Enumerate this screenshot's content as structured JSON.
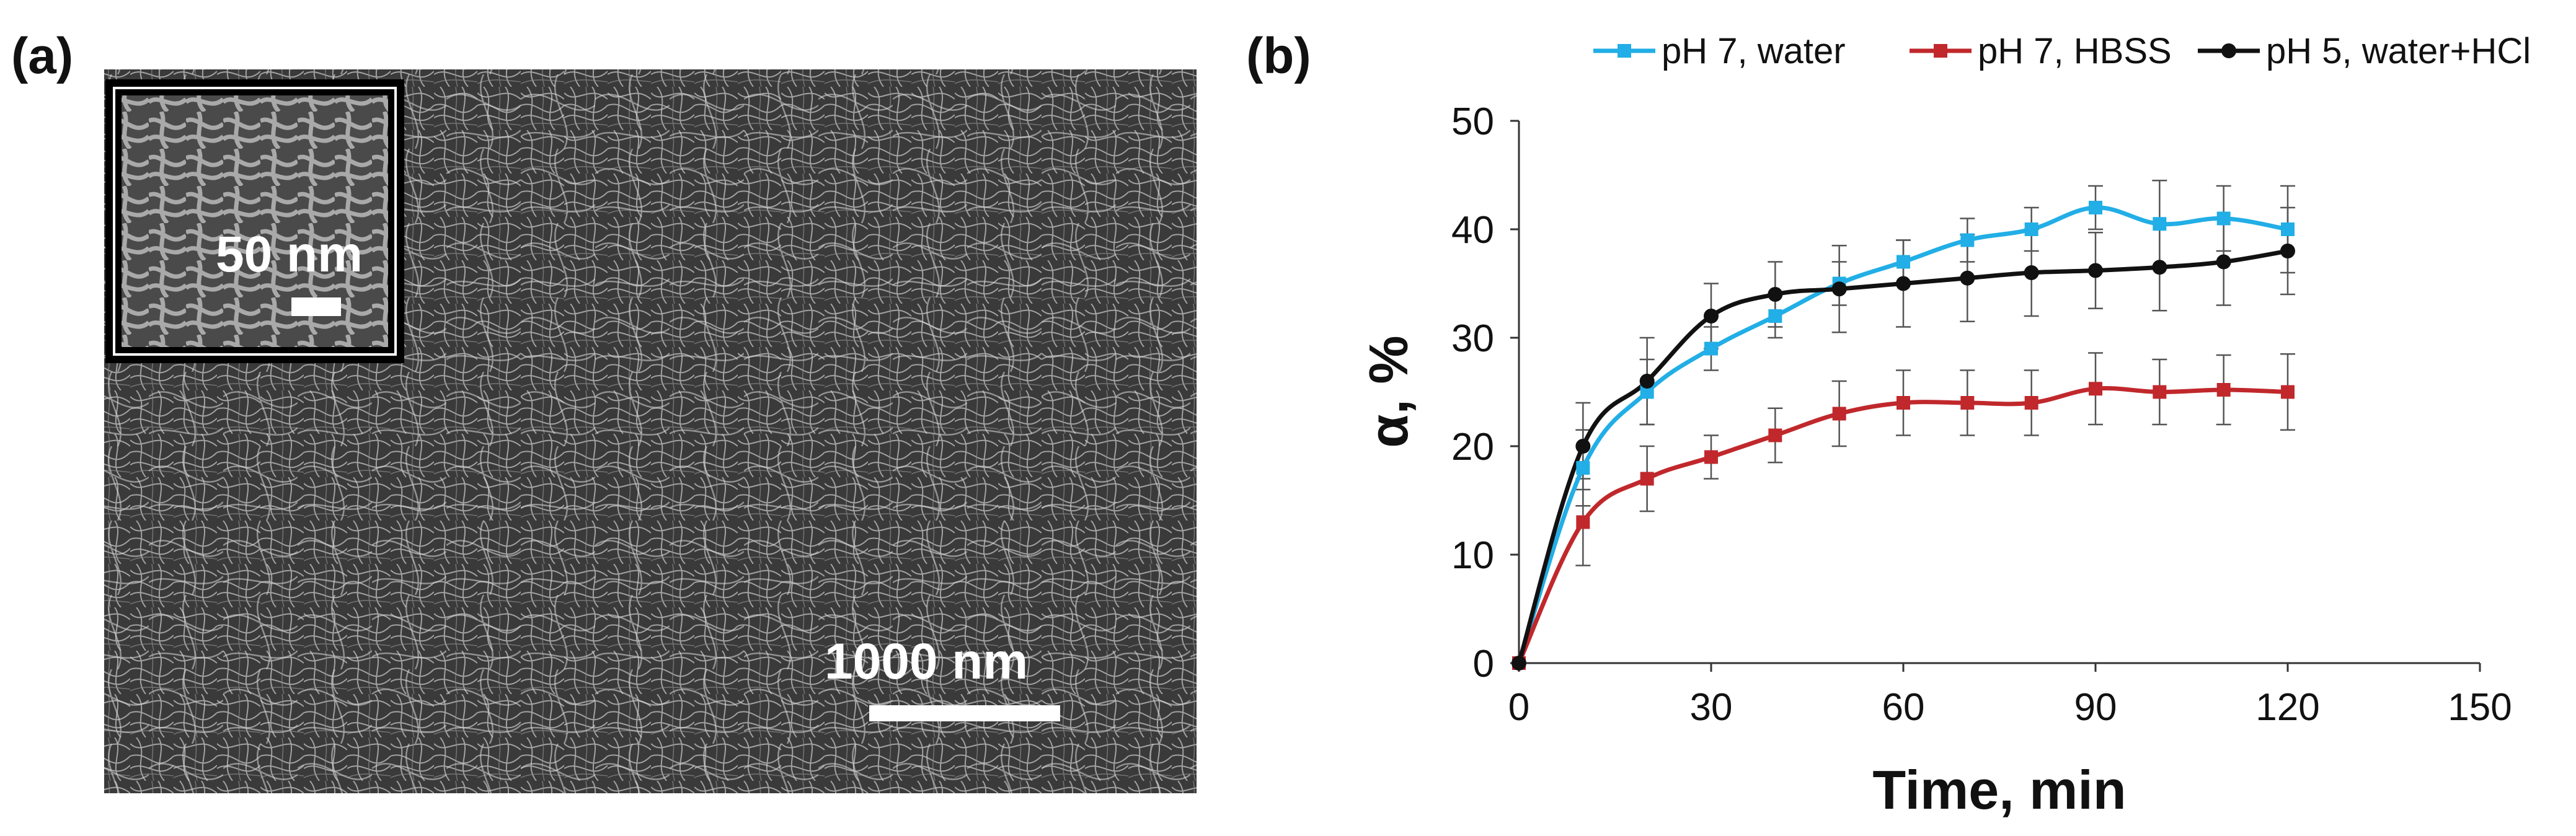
{
  "panel_a": {
    "label": "(a)",
    "inset_scale": "50 nm",
    "main_scale": "1000 nm"
  },
  "panel_b": {
    "label": "(b)"
  },
  "chart_data": {
    "type": "line",
    "title": "",
    "xlabel": "Time, min",
    "ylabel": "α, %",
    "xlim": [
      0,
      150
    ],
    "ylim": [
      0,
      50
    ],
    "xticks": [
      0,
      30,
      60,
      90,
      120,
      150
    ],
    "yticks": [
      0,
      10,
      20,
      30,
      40,
      50
    ],
    "grid": false,
    "legend_position": "top",
    "series": [
      {
        "name": "pH 7, water",
        "color": "#22aee6",
        "marker": "square",
        "x": [
          0,
          10,
          20,
          30,
          40,
          50,
          60,
          70,
          80,
          90,
          100,
          110,
          120
        ],
        "y": [
          0,
          18,
          25,
          29,
          32,
          35,
          37,
          39,
          40,
          42,
          40.5,
          41,
          40
        ],
        "err": [
          0,
          3.5,
          3,
          2,
          2,
          2,
          2,
          2,
          2,
          2,
          4,
          3,
          4
        ]
      },
      {
        "name": "pH 7, HBSS",
        "color": "#c0282c",
        "marker": "square",
        "x": [
          0,
          10,
          20,
          30,
          40,
          50,
          60,
          70,
          80,
          90,
          100,
          110,
          120
        ],
        "y": [
          0,
          13,
          17,
          19,
          21,
          23,
          24,
          24,
          24,
          25.3,
          25,
          25.2,
          25
        ],
        "err": [
          0,
          4,
          3,
          2,
          2.5,
          3,
          3,
          3,
          3,
          3.3,
          3,
          3.2,
          3.5
        ]
      },
      {
        "name": "pH 5, water+HCl",
        "color": "#111111",
        "marker": "circle",
        "x": [
          0,
          10,
          20,
          30,
          40,
          50,
          60,
          70,
          80,
          90,
          100,
          110,
          120
        ],
        "y": [
          0,
          20,
          26,
          32,
          34,
          34.5,
          35,
          35.5,
          36,
          36.2,
          36.5,
          37,
          38
        ],
        "err": [
          0,
          4,
          4,
          3,
          3,
          4,
          4,
          4,
          4,
          3.5,
          4,
          4,
          4
        ]
      }
    ]
  }
}
